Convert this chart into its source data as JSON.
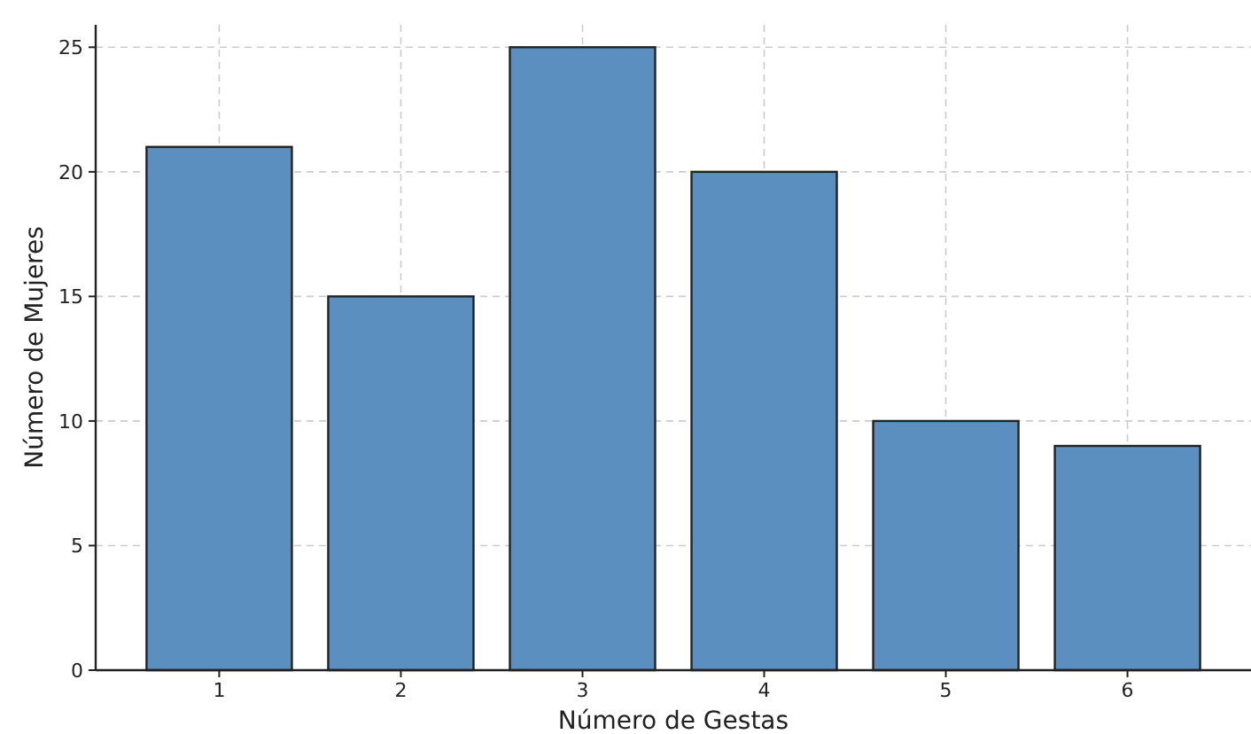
{
  "chart_data": {
    "type": "bar",
    "xlabel": "Número de Gestas",
    "ylabel": "Número de Mujeres",
    "categories": [
      "1",
      "2",
      "3",
      "4",
      "5",
      "6"
    ],
    "values": [
      21,
      15,
      25,
      20,
      10,
      9
    ],
    "color": "#5a8fc0",
    "ylim": [
      0,
      25.9
    ],
    "yticks": [
      0,
      5,
      10,
      15,
      20,
      25
    ],
    "grid": true
  }
}
